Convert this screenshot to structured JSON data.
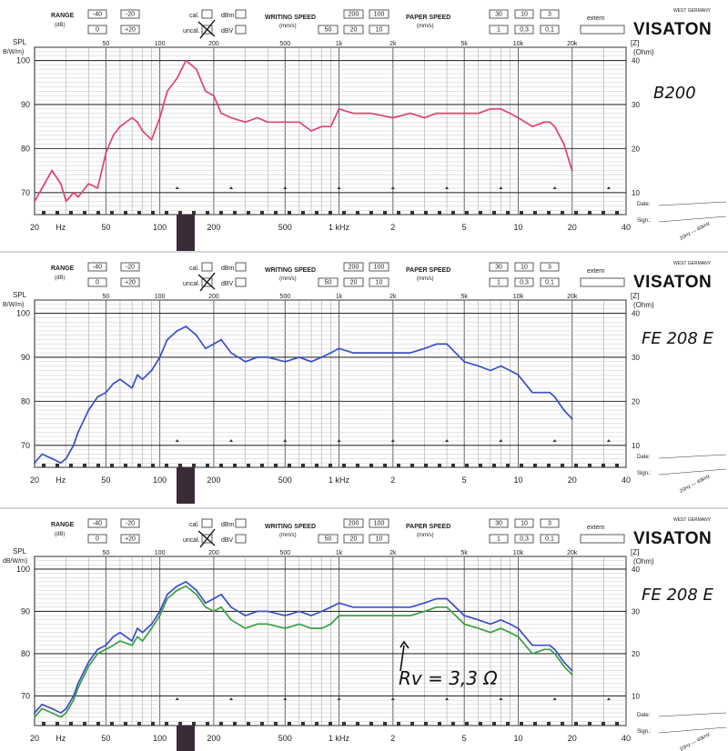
{
  "header": {
    "range_label": "RANGE",
    "range_unit": "(dB)",
    "range_buttons": [
      "-40",
      "-20",
      "0",
      "+20"
    ],
    "cal_label": "cal.",
    "uncal_label": "uncal.",
    "dbm_label": "dBm",
    "dbv_label": "dBV",
    "writing_speed_label": "WRITING SPEED",
    "writing_speed_unit": "(mm/s)",
    "writing_speed_buttons": [
      "200",
      "100",
      "50",
      "20",
      "10"
    ],
    "paper_speed_label": "PAPER SPEED",
    "paper_speed_unit": "(mm/s)",
    "paper_speed_buttons": [
      "30",
      "10",
      "3",
      "1",
      "0,3",
      "0,1"
    ],
    "extern_label": "extern",
    "brand": "VISATON",
    "brand_sub": "WEST GERMANY"
  },
  "axis": {
    "spl_label": "SPL",
    "spl_unit_top": "B/W/m)",
    "spl_unit_bottom": "dB/W/m)",
    "z_label": "[Z]",
    "z_unit": "(Ohm)",
    "top_ticks": [
      "50",
      "100",
      "200",
      "500",
      "1k",
      "2k",
      "5k",
      "10k",
      "20k"
    ],
    "bottom_ticks": [
      "20",
      "Hz",
      "50",
      "100",
      "200",
      "500",
      "1 kHz",
      "2",
      "5",
      "10",
      "20",
      "40"
    ],
    "date_label": "Date:",
    "sign_label": "Sign.:",
    "corner_labels": [
      "20Hz — 40kHz",
      "20Hz — 40kHz",
      "20Hz — 40kHz"
    ]
  },
  "chart_data": [
    {
      "type": "line",
      "note": "B200",
      "x": [
        20,
        22,
        25,
        28,
        30,
        33,
        35,
        40,
        45,
        50,
        55,
        60,
        70,
        75,
        80,
        90,
        100,
        110,
        125,
        140,
        160,
        180,
        200,
        220,
        250,
        300,
        350,
        400,
        500,
        600,
        700,
        800,
        900,
        1000,
        1200,
        1500,
        2000,
        2500,
        3000,
        3500,
        4000,
        5000,
        6000,
        7000,
        8000,
        9000,
        10000,
        12000,
        14000,
        15000,
        16000,
        18000,
        20000
      ],
      "y_ticks": [
        70,
        80,
        90,
        100
      ],
      "z_ticks": [
        10,
        20,
        30,
        40
      ],
      "ylim": [
        65,
        103
      ],
      "xlim": [
        20,
        40000
      ],
      "series": [
        {
          "color": "#e0426b",
          "values": [
            68,
            71,
            75,
            72,
            68,
            70,
            69,
            72,
            71,
            79,
            83,
            85,
            87,
            86,
            84,
            82,
            87,
            93,
            96,
            100,
            98,
            93,
            92,
            88,
            87,
            86,
            87,
            86,
            86,
            86,
            84,
            85,
            85,
            89,
            88,
            88,
            87,
            88,
            87,
            88,
            88,
            88,
            88,
            89,
            89,
            88,
            87,
            85,
            86,
            86,
            85,
            81,
            75
          ]
        }
      ]
    },
    {
      "type": "line",
      "note": "FE 208 E",
      "x": [
        20,
        22,
        25,
        28,
        30,
        33,
        35,
        40,
        45,
        50,
        55,
        60,
        70,
        75,
        80,
        90,
        100,
        110,
        125,
        140,
        160,
        180,
        200,
        220,
        250,
        300,
        350,
        400,
        500,
        600,
        700,
        800,
        900,
        1000,
        1200,
        1500,
        2000,
        2500,
        3000,
        3500,
        4000,
        5000,
        6000,
        7000,
        8000,
        9000,
        10000,
        12000,
        14000,
        15000,
        16000,
        18000,
        20000
      ],
      "y_ticks": [
        70,
        80,
        90,
        100
      ],
      "z_ticks": [
        10,
        20,
        30,
        40
      ],
      "ylim": [
        65,
        103
      ],
      "xlim": [
        20,
        40000
      ],
      "series": [
        {
          "color": "#3a4fc9",
          "values": [
            66,
            68,
            67,
            66,
            67,
            70,
            73,
            78,
            81,
            82,
            84,
            85,
            83,
            86,
            85,
            87,
            90,
            94,
            96,
            97,
            95,
            92,
            93,
            94,
            91,
            89,
            90,
            90,
            89,
            90,
            89,
            90,
            91,
            92,
            91,
            91,
            91,
            91,
            92,
            93,
            93,
            89,
            88,
            87,
            88,
            87,
            86,
            82,
            82,
            82,
            81,
            78,
            76
          ]
        }
      ]
    },
    {
      "type": "line",
      "note": "FE 208 E",
      "annotation": "Rv = 3,3 Ω",
      "x": [
        20,
        22,
        25,
        28,
        30,
        33,
        35,
        40,
        45,
        50,
        55,
        60,
        70,
        75,
        80,
        90,
        100,
        110,
        125,
        140,
        160,
        180,
        200,
        220,
        250,
        300,
        350,
        400,
        500,
        600,
        700,
        800,
        900,
        1000,
        1200,
        1500,
        2000,
        2500,
        3000,
        3500,
        4000,
        5000,
        6000,
        7000,
        8000,
        9000,
        10000,
        12000,
        14000,
        15000,
        16000,
        18000,
        20000
      ],
      "y_ticks": [
        70,
        80,
        90,
        100
      ],
      "z_ticks": [
        10,
        20,
        30,
        40
      ],
      "ylim": [
        63,
        103
      ],
      "xlim": [
        20,
        40000
      ],
      "series": [
        {
          "color": "#3a4fc9",
          "values": [
            66,
            68,
            67,
            66,
            67,
            70,
            73,
            78,
            81,
            82,
            84,
            85,
            83,
            86,
            85,
            87,
            90,
            94,
            96,
            97,
            95,
            92,
            93,
            94,
            91,
            89,
            90,
            90,
            89,
            90,
            89,
            90,
            91,
            92,
            91,
            91,
            91,
            91,
            92,
            93,
            93,
            89,
            88,
            87,
            88,
            87,
            86,
            82,
            82,
            82,
            81,
            78,
            76
          ]
        },
        {
          "color": "#3aa045",
          "values": [
            65,
            67,
            66,
            65,
            66,
            69,
            72,
            77,
            80,
            81,
            82,
            83,
            82,
            84,
            83,
            86,
            89,
            93,
            95,
            96,
            94,
            91,
            90,
            91,
            88,
            86,
            87,
            87,
            86,
            87,
            86,
            86,
            87,
            89,
            89,
            89,
            89,
            89,
            90,
            91,
            91,
            87,
            86,
            85,
            86,
            85,
            84,
            80,
            81,
            81,
            80,
            77,
            75
          ]
        }
      ]
    }
  ]
}
